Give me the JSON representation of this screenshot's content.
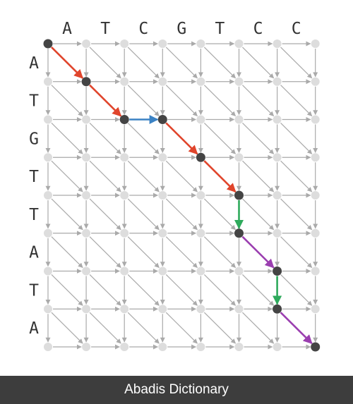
{
  "diagram": {
    "top_sequence": [
      "A",
      "T",
      "C",
      "G",
      "T",
      "C",
      "C"
    ],
    "left_sequence": [
      "A",
      "T",
      "G",
      "T",
      "T",
      "A",
      "T",
      "A"
    ],
    "colors": {
      "grid_edge": "#aaaaaa",
      "grid_node": "#dddddd",
      "path_node": "#444444",
      "diagonal_match": "#e0452c",
      "horizontal": "#3b82c4",
      "vertical": "#2eaa5c",
      "diagonal_mismatch": "#9b3fb0"
    },
    "alignment_path": [
      {
        "from": [
          0,
          0
        ],
        "to": [
          1,
          1
        ],
        "kind": "diagonal_match"
      },
      {
        "from": [
          1,
          1
        ],
        "to": [
          2,
          2
        ],
        "kind": "diagonal_match"
      },
      {
        "from": [
          2,
          2
        ],
        "to": [
          2,
          3
        ],
        "kind": "horizontal"
      },
      {
        "from": [
          2,
          3
        ],
        "to": [
          3,
          4
        ],
        "kind": "diagonal_match"
      },
      {
        "from": [
          3,
          4
        ],
        "to": [
          4,
          5
        ],
        "kind": "diagonal_match"
      },
      {
        "from": [
          4,
          5
        ],
        "to": [
          5,
          5
        ],
        "kind": "vertical"
      },
      {
        "from": [
          5,
          5
        ],
        "to": [
          6,
          6
        ],
        "kind": "diagonal_mismatch"
      },
      {
        "from": [
          6,
          6
        ],
        "to": [
          7,
          6
        ],
        "kind": "vertical"
      },
      {
        "from": [
          7,
          6
        ],
        "to": [
          8,
          7
        ],
        "kind": "diagonal_mismatch"
      }
    ]
  },
  "footer": {
    "text": "Abadis Dictionary"
  }
}
